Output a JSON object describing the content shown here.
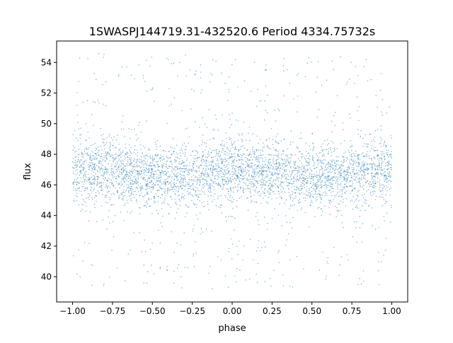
{
  "chart_data": {
    "type": "scatter",
    "title": "1SWASPJ144719.31-432520.6 Period 4334.75732s",
    "xlabel": "phase",
    "ylabel": "flux",
    "xlim": [
      -1.1,
      1.1
    ],
    "ylim": [
      38.35,
      55.4
    ],
    "xticks": [
      -1.0,
      -0.75,
      -0.5,
      -0.25,
      0.0,
      0.25,
      0.5,
      0.75,
      1.0
    ],
    "xtick_labels": [
      "−1.00",
      "−0.75",
      "−0.50",
      "−0.25",
      "0.00",
      "0.25",
      "0.50",
      "0.75",
      "1.00"
    ],
    "yticks": [
      40,
      42,
      44,
      46,
      48,
      50,
      52,
      54
    ],
    "ytick_labels": [
      "40",
      "42",
      "44",
      "46",
      "48",
      "50",
      "52",
      "54"
    ],
    "grid": false,
    "legend": "none",
    "marker_color": "#1f77b4",
    "series": [
      {
        "x_range": [
          -1.0,
          1.0
        ],
        "y_range_scatter": [
          39.2,
          54.6
        ],
        "dense_band": {
          "x": [
            -1.0,
            -0.75,
            -0.5,
            -0.25,
            0.0,
            0.25,
            0.5,
            0.75,
            1.0
          ],
          "center_y": [
            47.0,
            46.9,
            46.5,
            46.6,
            47.0,
            46.9,
            46.5,
            46.6,
            47.0
          ],
          "half_width": [
            2.0,
            2.0,
            1.8,
            1.8,
            2.0,
            2.0,
            1.8,
            1.8,
            2.0
          ]
        }
      }
    ]
  }
}
